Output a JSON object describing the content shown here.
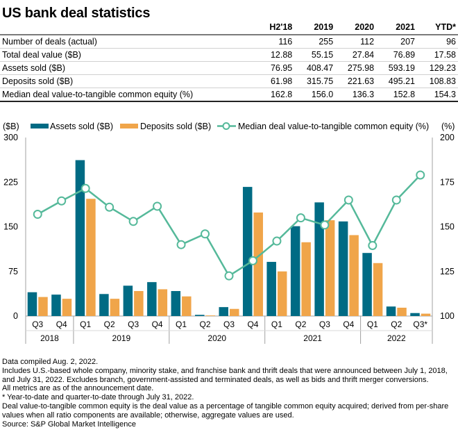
{
  "title": "US bank deal statistics",
  "table": {
    "columns": [
      "",
      "H2'18",
      "2019",
      "2020",
      "2021",
      "YTD*"
    ],
    "rows": [
      {
        "label": "Number of deals (actual)",
        "values": [
          "116",
          "255",
          "112",
          "207",
          "96"
        ]
      },
      {
        "label": "Total deal value ($B)",
        "values": [
          "12.88",
          "55.15",
          "27.84",
          "76.89",
          "17.58"
        ]
      },
      {
        "label": "Assets sold ($B)",
        "values": [
          "76.95",
          "408.47",
          "275.98",
          "593.19",
          "129.23"
        ]
      },
      {
        "label": "Deposits sold ($B)",
        "values": [
          "61.98",
          "315.75",
          "221.63",
          "495.21",
          "108.83"
        ]
      },
      {
        "label": "Median deal value-to-tangible common equity (%)",
        "values": [
          "162.8",
          "156.0",
          "136.3",
          "152.8",
          "154.3"
        ]
      }
    ]
  },
  "chart_data": {
    "type": "bar",
    "title": "",
    "xlabel": "",
    "ylabel": "($B)",
    "y2label": "(%)",
    "ylim": [
      0,
      300
    ],
    "y2lim": [
      100,
      200
    ],
    "yticks": [
      0,
      75,
      150,
      225,
      300
    ],
    "y2ticks": [
      100,
      125,
      150,
      175,
      200
    ],
    "grid": false,
    "legend": "top",
    "categories": [
      "Q3",
      "Q4",
      "Q1",
      "Q2",
      "Q3",
      "Q4",
      "Q1",
      "Q2",
      "Q3",
      "Q4",
      "Q1",
      "Q2",
      "Q3",
      "Q4",
      "Q1",
      "Q2",
      "Q3*"
    ],
    "year_groups": [
      {
        "label": "2018",
        "count": 2
      },
      {
        "label": "2019",
        "count": 4
      },
      {
        "label": "2020",
        "count": 4
      },
      {
        "label": "2021",
        "count": 4
      },
      {
        "label": "2022",
        "count": 3
      }
    ],
    "series": [
      {
        "name": "Assets sold ($B)",
        "type": "bar",
        "axis": "left",
        "color": "#006b84",
        "values": [
          40,
          36,
          262,
          37,
          51,
          57,
          42,
          2,
          15,
          217,
          91,
          151,
          191,
          159,
          106,
          16,
          5
        ]
      },
      {
        "name": "Deposits sold ($B)",
        "type": "bar",
        "axis": "left",
        "color": "#f0a54a",
        "values": [
          32,
          29,
          197,
          29,
          42,
          45,
          33,
          1,
          12,
          174,
          75,
          124,
          161,
          136,
          89,
          14,
          4
        ]
      },
      {
        "name": "Median deal value-to-tangible common equity (%)",
        "type": "line",
        "axis": "right",
        "color": "#55b99a",
        "values": [
          157,
          164.5,
          171.5,
          161,
          153,
          161.5,
          140,
          146,
          122.5,
          131,
          142,
          155,
          151,
          165,
          139.5,
          165,
          179
        ]
      }
    ]
  },
  "notes": [
    "Data compiled Aug. 2, 2022.",
    "Includes U.S.-based whole company, minority stake, and franchise bank and thrift deals that were announced between July 1, 2018, and July 31, 2022. Excludes branch, government-assisted and terminated deals, as well as bids and thrift merger conversions.",
    "All metrics are as of the announcement date.",
    "* Year-to-date and quarter-to-date through July 31, 2022.",
    "Deal value-to-tangible common equity is the deal value as a percentage of tangible common equity acquired; derived from per-share values when all ratio components are available; otherwise, aggregate values are used.",
    "Source: S&P Global Market Intelligence"
  ]
}
